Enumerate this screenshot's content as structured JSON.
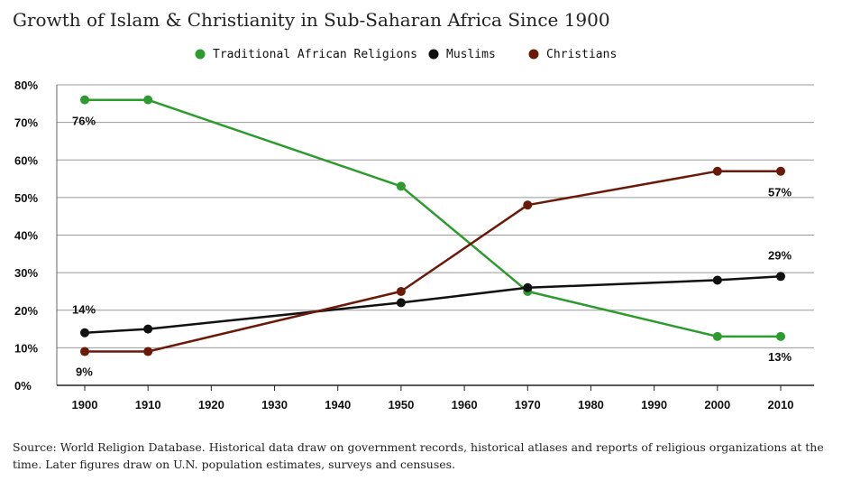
{
  "chart_data": {
    "type": "line",
    "title": "Growth of Islam & Christianity in Sub-Saharan Africa Since 1900",
    "x": [
      1900,
      1910,
      1950,
      1970,
      2000,
      2010
    ],
    "x_ticks": [
      "1900",
      "1910",
      "1920",
      "1930",
      "1940",
      "1950",
      "1960",
      "1970",
      "1980",
      "1990",
      "2000",
      "2010"
    ],
    "y_ticks": [
      "0%",
      "10%",
      "20%",
      "30%",
      "40%",
      "50%",
      "60%",
      "70%",
      "80%"
    ],
    "xlim": [
      1900,
      2010
    ],
    "ylim": [
      0,
      80
    ],
    "grid": "horizontal",
    "legend_position": "top",
    "series": [
      {
        "name": "Traditional African Religions",
        "color": "#2e9b2e",
        "values": [
          76,
          76,
          53,
          25,
          13,
          13
        ]
      },
      {
        "name": "Muslims",
        "color": "#111111",
        "values": [
          14,
          15,
          22,
          26,
          28,
          29
        ]
      },
      {
        "name": "Christians",
        "color": "#6b1a0a",
        "values": [
          9,
          9,
          25,
          48,
          57,
          57
        ]
      }
    ],
    "annotations": [
      {
        "text": "76%",
        "x": 1900,
        "y": 76,
        "series": 0
      },
      {
        "text": "13%",
        "x": 2010,
        "y": 13,
        "series": 0
      },
      {
        "text": "14%",
        "x": 1900,
        "y": 14,
        "series": 1
      },
      {
        "text": "29%",
        "x": 2010,
        "y": 29,
        "series": 1
      },
      {
        "text": "9%",
        "x": 1900,
        "y": 9,
        "series": 2
      },
      {
        "text": "57%",
        "x": 2010,
        "y": 57,
        "series": 2
      }
    ]
  },
  "source": "Source: World Religion Database. Historical data draw on government records, historical atlases and reports of religious organizations at the time. Later figures draw on U.N. population estimates, surveys and censuses."
}
